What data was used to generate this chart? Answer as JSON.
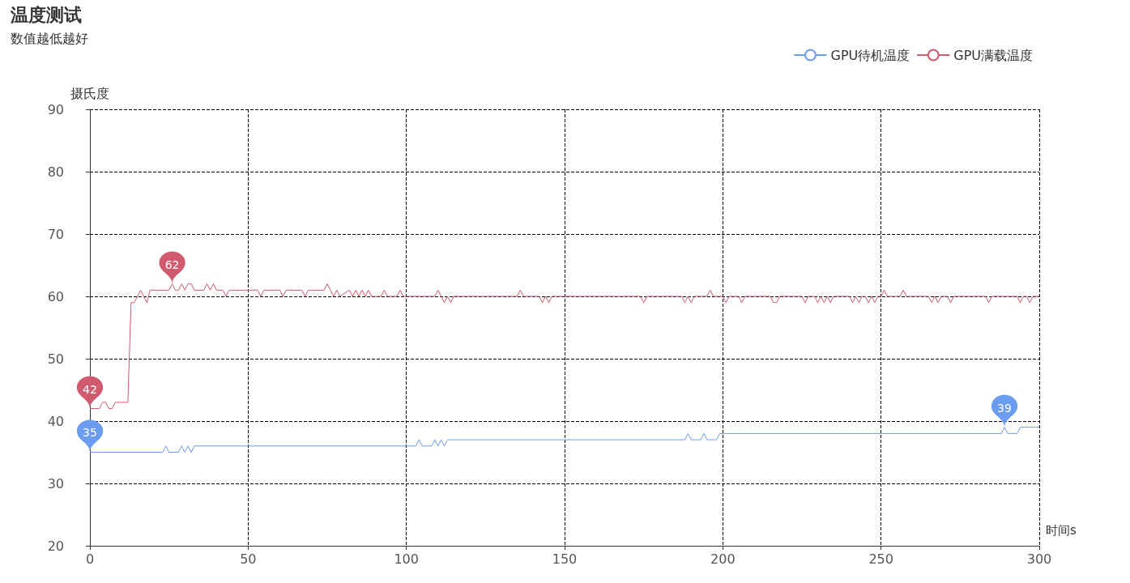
{
  "chart_data": {
    "type": "line",
    "title": "温度测试",
    "subtitle": "数值越低越好",
    "xlabel": "时间s",
    "ylabel": "摄氏度",
    "xlim": [
      0,
      300
    ],
    "xticks": [
      0,
      50,
      100,
      150,
      200,
      250,
      300
    ],
    "ylim": [
      20,
      90
    ],
    "yticks": [
      20,
      30,
      40,
      50,
      60,
      70,
      80,
      90
    ],
    "grid": true,
    "legend": "top right",
    "marker": "none",
    "line_style": "solid",
    "series": [
      {
        "name": "GPU待机温度",
        "color": "#6a9cf0",
        "x": [
          0,
          23,
          24,
          25,
          28,
          29,
          30,
          31,
          32,
          33,
          103,
          104,
          105,
          108,
          109,
          110,
          111,
          112,
          113,
          188,
          189,
          190,
          193,
          194,
          195,
          198,
          199,
          200,
          288,
          289,
          290,
          293,
          294,
          300
        ],
        "values": [
          35,
          35,
          36,
          35,
          35,
          36,
          35,
          36,
          35,
          36,
          36,
          37,
          36,
          36,
          37,
          36,
          37,
          36,
          37,
          37,
          38,
          37,
          37,
          38,
          37,
          37,
          38,
          38,
          38,
          39,
          38,
          38,
          39,
          39
        ]
      },
      {
        "name": "GPU满载温度",
        "color": "#d05a6e",
        "x": [
          0,
          3,
          4,
          5,
          6,
          7,
          8,
          12,
          13,
          14,
          15,
          16,
          17,
          18,
          19,
          25,
          26,
          27,
          28,
          29,
          30,
          31,
          32,
          33,
          36,
          37,
          38,
          39,
          40,
          42,
          43,
          44,
          53,
          54,
          55,
          60,
          61,
          62,
          67,
          68,
          69,
          74,
          75,
          76,
          77,
          78,
          79,
          82,
          83,
          84,
          85,
          86,
          87,
          88,
          89,
          92,
          93,
          94,
          97,
          98,
          99,
          109,
          110,
          111,
          112,
          113,
          114,
          115,
          135,
          136,
          137,
          142,
          143,
          144,
          145,
          146,
          174,
          175,
          176,
          187,
          188,
          189,
          190,
          191,
          195,
          196,
          197,
          200,
          201,
          202,
          205,
          206,
          207,
          215,
          216,
          217,
          218,
          225,
          226,
          227,
          229,
          230,
          231,
          232,
          233,
          234,
          235,
          240,
          241,
          242,
          243,
          244,
          245,
          246,
          247,
          248,
          249,
          250,
          251,
          252,
          256,
          257,
          258,
          265,
          266,
          267,
          268,
          269,
          271,
          272,
          273,
          283,
          284,
          285,
          293,
          294,
          295,
          296,
          297,
          298,
          300
        ],
        "values": [
          42,
          42,
          43,
          43,
          42,
          42,
          43,
          43,
          59,
          59,
          60,
          61,
          60,
          59,
          61,
          61,
          62,
          61,
          61,
          62,
          61,
          62,
          62,
          61,
          61,
          62,
          61,
          62,
          61,
          61,
          60,
          61,
          61,
          60,
          61,
          61,
          60,
          61,
          61,
          60,
          61,
          61,
          62,
          61,
          60,
          61,
          60,
          61,
          60,
          61,
          60,
          61,
          60,
          61,
          60,
          60,
          61,
          60,
          60,
          61,
          60,
          60,
          61,
          60,
          59,
          60,
          59,
          60,
          60,
          61,
          60,
          60,
          59,
          60,
          59,
          60,
          60,
          59,
          60,
          60,
          59,
          60,
          59,
          60,
          60,
          61,
          60,
          60,
          59,
          60,
          60,
          59,
          60,
          60,
          59,
          59,
          60,
          60,
          59,
          60,
          60,
          59,
          60,
          59,
          60,
          59,
          60,
          60,
          59,
          60,
          59,
          60,
          60,
          59,
          60,
          59,
          60,
          60,
          61,
          60,
          60,
          61,
          60,
          60,
          59,
          60,
          59,
          60,
          60,
          59,
          60,
          60,
          59,
          60,
          60,
          59,
          60,
          60,
          59,
          60,
          60
        ]
      }
    ],
    "annotations": [
      {
        "text": "35",
        "x": 0,
        "y": 35
      },
      {
        "text": "39",
        "x": 289,
        "y": 39
      },
      {
        "text": "42",
        "x": 0,
        "y": 42
      },
      {
        "text": "62",
        "x": 26,
        "y": 62
      }
    ]
  }
}
